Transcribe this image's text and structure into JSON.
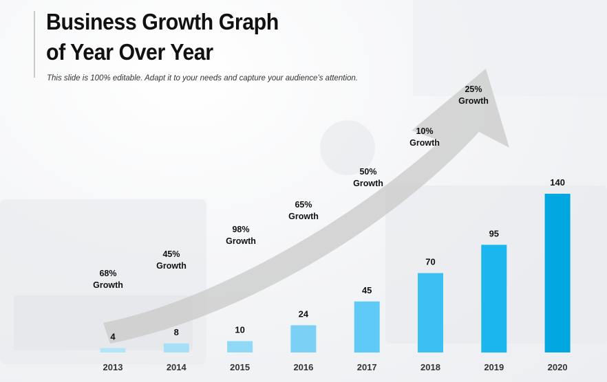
{
  "slide": {
    "title_line1": "Business Growth Graph",
    "title_line2": "of Year Over Year",
    "subtitle": "This slide is 100% editable. Adapt it to your needs and capture your audience’s attention."
  },
  "chart_data": {
    "type": "bar",
    "title": "",
    "xlabel": "",
    "ylabel": "",
    "categories": [
      "2013",
      "2014",
      "2015",
      "2016",
      "2017",
      "2018",
      "2019",
      "2020"
    ],
    "values": [
      4,
      8,
      10,
      24,
      45,
      70,
      95,
      140
    ],
    "value_labels": [
      "4",
      "8",
      "10",
      "24",
      "45",
      "70",
      "95",
      "140"
    ],
    "growth_annotations": [
      {
        "pct": "68%",
        "word": "Growth"
      },
      {
        "pct": "45%",
        "word": "Growth"
      },
      {
        "pct": "98%",
        "word": "Growth"
      },
      {
        "pct": "65%",
        "word": "Growth"
      },
      {
        "pct": "50%",
        "word": "Growth"
      },
      {
        "pct": "10%",
        "word": "Growth"
      },
      {
        "pct": "25%",
        "word": "Growth"
      }
    ],
    "ylim": [
      0,
      140
    ],
    "grid": false,
    "bar_colors": [
      "#b3e5f8",
      "#a6e0f7",
      "#8fd8f6",
      "#7ad1f5",
      "#5fcaf5",
      "#3cc0f3",
      "#1bb6ee",
      "#00a6e0"
    ],
    "arrow_color": "#c9c9c9"
  }
}
